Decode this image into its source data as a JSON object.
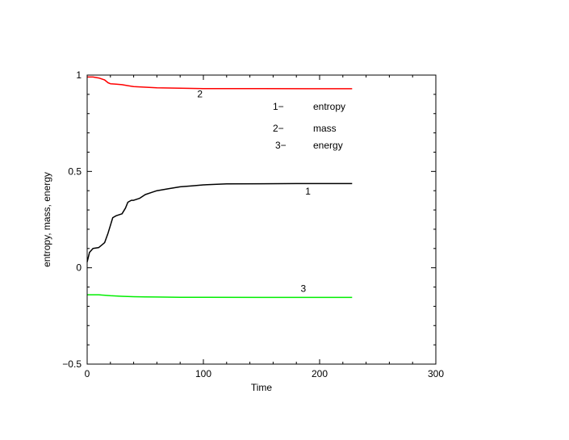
{
  "chart_data": {
    "type": "line",
    "title": "",
    "xlabel": "Time",
    "ylabel": "entropy, mass, energy",
    "xlim": [
      0,
      300
    ],
    "ylim": [
      -0.5,
      1
    ],
    "xticks": [
      0,
      100,
      200,
      300
    ],
    "yticks": [
      -0.5,
      0,
      0.5,
      1
    ],
    "x_tick_labels": [
      "0",
      "100",
      "200",
      "300"
    ],
    "y_tick_labels": [
      "−0.5",
      "0",
      "0.5",
      "1"
    ],
    "grid": false,
    "legend": {
      "placement": "top-right",
      "entries": [
        {
          "marker": "1−",
          "label": "entropy"
        },
        {
          "marker": "2−",
          "label": "mass"
        },
        {
          "marker": "3−",
          "label": "energy"
        }
      ]
    },
    "series": [
      {
        "tag": "1",
        "color": "#000000",
        "x": [
          0,
          2,
          5,
          10,
          15,
          18,
          20,
          22,
          25,
          30,
          33,
          35,
          38,
          40,
          45,
          50,
          55,
          60,
          65,
          70,
          80,
          90,
          100,
          120,
          150,
          180,
          200,
          228
        ],
        "y": [
          0.03,
          0.08,
          0.1,
          0.105,
          0.13,
          0.18,
          0.22,
          0.26,
          0.27,
          0.28,
          0.31,
          0.34,
          0.35,
          0.35,
          0.36,
          0.38,
          0.39,
          0.4,
          0.405,
          0.41,
          0.42,
          0.425,
          0.43,
          0.435,
          0.436,
          0.437,
          0.437,
          0.437
        ]
      },
      {
        "tag": "2",
        "color": "#ff0000",
        "x": [
          0,
          5,
          10,
          15,
          18,
          20,
          25,
          30,
          35,
          40,
          50,
          60,
          80,
          100,
          150,
          200,
          228
        ],
        "y": [
          0.99,
          0.99,
          0.985,
          0.975,
          0.96,
          0.955,
          0.953,
          0.95,
          0.945,
          0.94,
          0.937,
          0.934,
          0.932,
          0.93,
          0.93,
          0.929,
          0.929
        ]
      },
      {
        "tag": "3",
        "color": "#00ee00",
        "x": [
          0,
          10,
          20,
          30,
          40,
          50,
          60,
          80,
          100,
          150,
          200,
          228
        ],
        "y": [
          -0.14,
          -0.14,
          -0.145,
          -0.148,
          -0.15,
          -0.151,
          -0.152,
          -0.153,
          -0.153,
          -0.154,
          -0.154,
          -0.154
        ]
      }
    ],
    "curve_labels": [
      {
        "text": "1",
        "x": 190,
        "y": 0.38
      },
      {
        "text": "2",
        "x": 97,
        "y": 0.885
      },
      {
        "text": "3",
        "x": 186,
        "y": -0.125
      }
    ]
  }
}
